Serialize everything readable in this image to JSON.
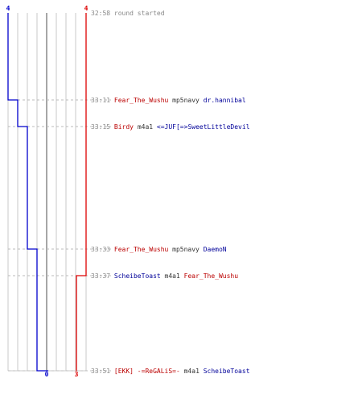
{
  "chart_data": {
    "type": "line",
    "title": "",
    "xlabel": "",
    "ylabel": "",
    "score_range": [
      0,
      4
    ],
    "series": [
      {
        "team": "blue",
        "color": "#0000cc",
        "start_score": 4,
        "end_score": 0,
        "steps": [
          {
            "event": 1,
            "score": 3
          },
          {
            "event": 2,
            "score": 2
          },
          {
            "event": 3,
            "score": 1
          },
          {
            "event": 5,
            "score": 0
          }
        ]
      },
      {
        "team": "red",
        "color": "#dd0000",
        "start_score": 4,
        "end_score": 3,
        "steps": [
          {
            "event": 4,
            "score": 3
          }
        ]
      }
    ],
    "colors": {
      "red": "#bb0000",
      "blue": "#000099",
      "weapon": "#333333",
      "time": "#888888",
      "grid": "#c8c8c8",
      "zero_line": "#777777",
      "dash": "#bbbbbb"
    },
    "events": [
      {
        "time": "32:58",
        "text": "round started"
      },
      {
        "time": "33:11",
        "killer": "Fear_The_Wushu",
        "killer_team": "red",
        "weapon": "mp5navy",
        "victim": "dr.hannibal",
        "victim_team": "blue"
      },
      {
        "time": "33:15",
        "killer": "Birdy",
        "killer_team": "red",
        "weapon": "m4a1",
        "victim": "<=JUF[=>SweetLittleDevil",
        "victim_team": "blue"
      },
      {
        "time": "33:33",
        "killer": "Fear_The_Wushu",
        "killer_team": "red",
        "weapon": "mp5navy",
        "victim": "DaemoN",
        "victim_team": "blue"
      },
      {
        "time": "33:37",
        "killer": "ScheibeToast",
        "killer_team": "blue",
        "weapon": "m4a1",
        "victim": "Fear_The_Wushu",
        "victim_team": "red"
      },
      {
        "time": "33:51",
        "killer": "[EKK] -=ReGALiS=-",
        "killer_team": "red",
        "weapon": "m4a1",
        "victim": "ScheibeToast",
        "victim_team": "blue"
      }
    ]
  }
}
